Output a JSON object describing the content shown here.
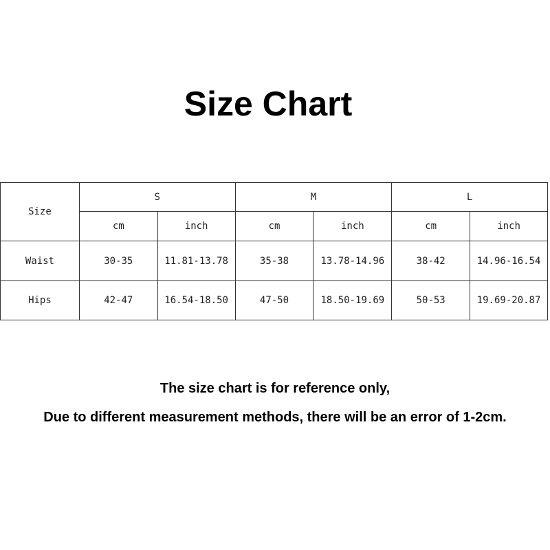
{
  "title": "Size Chart",
  "table": {
    "corner": "Size",
    "sizes": [
      "S",
      "M",
      "L"
    ],
    "units": [
      "cm",
      "inch",
      "cm",
      "inch",
      "cm",
      "inch"
    ],
    "rows": [
      {
        "label": "Waist",
        "values": [
          "30-35",
          "11.81-13.78",
          "35-38",
          "13.78-14.96",
          "38-42",
          "14.96-16.54"
        ]
      },
      {
        "label": "Hips",
        "values": [
          "42-47",
          "16.54-18.50",
          "47-50",
          "18.50-19.69",
          "50-53",
          "19.69-20.87"
        ]
      }
    ]
  },
  "notes": [
    "The size chart is for reference only,",
    "Due to different measurement methods, there will be an error of 1-2cm."
  ]
}
